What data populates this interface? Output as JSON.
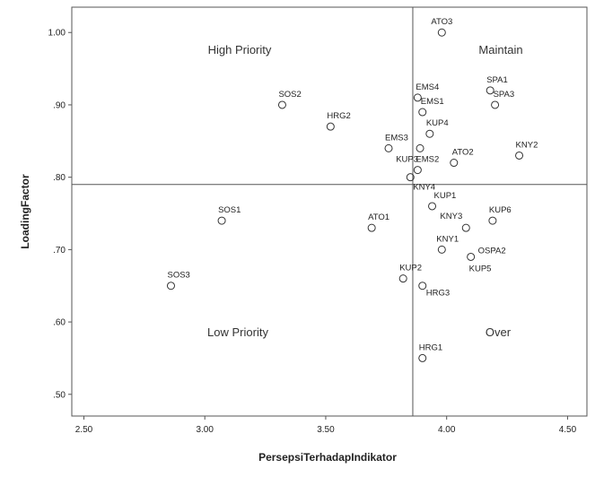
{
  "chart_data": {
    "type": "scatter",
    "xlabel": "PersepsiTerhadapIndikator",
    "ylabel": "LoadingFactor",
    "xlim": [
      2.45,
      4.58
    ],
    "ylim": [
      0.47,
      1.035
    ],
    "xticks": [
      "2.50",
      "3.00",
      "3.50",
      "4.00",
      "4.50"
    ],
    "xtick_values": [
      2.5,
      3.0,
      3.5,
      4.0,
      4.5
    ],
    "yticks": [
      "1.00",
      ".90",
      ".80",
      ".70",
      ".60",
      ".50"
    ],
    "ytick_values": [
      1.0,
      0.9,
      0.8,
      0.7,
      0.6,
      0.5
    ],
    "reference_lines": {
      "x": 3.86,
      "y": 0.79
    },
    "quadrants": {
      "top_left": "High Priority",
      "top_right": "Maintain",
      "bottom_left": "Low Priority",
      "bottom_right": "Over"
    },
    "points": [
      {
        "label": "ATO3",
        "x": 3.98,
        "y": 1.0
      },
      {
        "label": "SPA1",
        "x": 4.18,
        "y": 0.92
      },
      {
        "label": "SPA3",
        "x": 4.2,
        "y": 0.9
      },
      {
        "label": "EMS4",
        "x": 3.88,
        "y": 0.91
      },
      {
        "label": "EMS1",
        "x": 3.9,
        "y": 0.89
      },
      {
        "label": "SOS2",
        "x": 3.32,
        "y": 0.9
      },
      {
        "label": "HRG2",
        "x": 3.52,
        "y": 0.87
      },
      {
        "label": "KUP4",
        "x": 3.93,
        "y": 0.86
      },
      {
        "label": "EMS3",
        "x": 3.76,
        "y": 0.84
      },
      {
        "label": "KUP3",
        "x": 3.89,
        "y": 0.84
      },
      {
        "label": "KNY2",
        "x": 4.3,
        "y": 0.83
      },
      {
        "label": "ATO2",
        "x": 4.03,
        "y": 0.82
      },
      {
        "label": "EMS2",
        "x": 3.88,
        "y": 0.81
      },
      {
        "label": "KNY4",
        "x": 3.85,
        "y": 0.8
      },
      {
        "label": "KUP1",
        "x": 3.94,
        "y": 0.76
      },
      {
        "label": "SOS1",
        "x": 3.07,
        "y": 0.74
      },
      {
        "label": "KUP6",
        "x": 4.19,
        "y": 0.74
      },
      {
        "label": "ATO1",
        "x": 3.69,
        "y": 0.73
      },
      {
        "label": "KNY3",
        "x": 4.08,
        "y": 0.73
      },
      {
        "label": "KNY1",
        "x": 3.98,
        "y": 0.7
      },
      {
        "label": "OSPA2",
        "x": 4.1,
        "y": 0.69
      },
      {
        "label": "KUP5",
        "x": 4.1,
        "y": 0.69
      },
      {
        "label": "KUP2",
        "x": 3.82,
        "y": 0.66
      },
      {
        "label": "HRG3",
        "x": 3.9,
        "y": 0.65
      },
      {
        "label": "SOS3",
        "x": 2.86,
        "y": 0.65
      },
      {
        "label": "HRG1",
        "x": 3.9,
        "y": 0.55
      }
    ]
  }
}
